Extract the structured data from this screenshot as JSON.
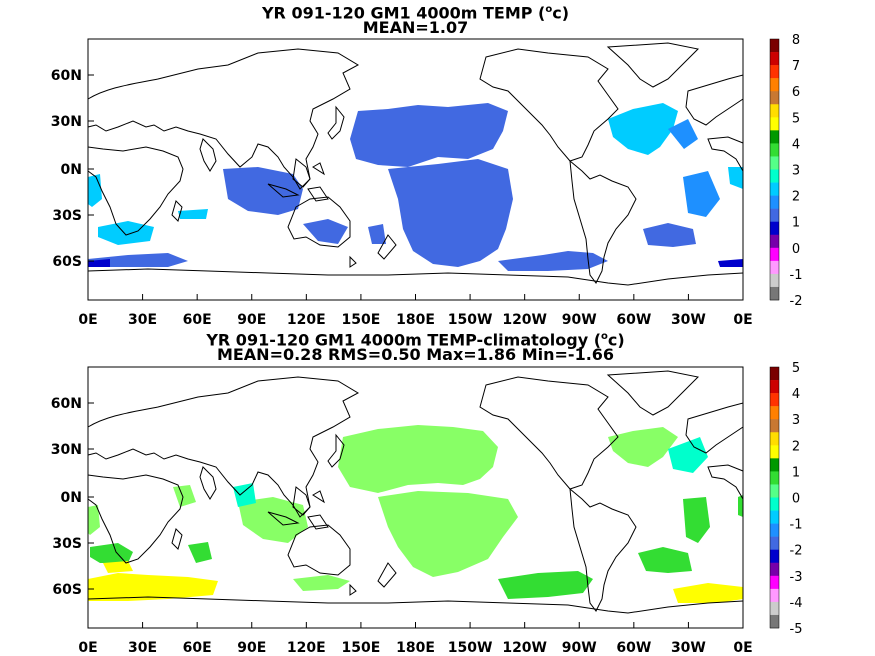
{
  "panels": [
    {
      "title_prefix": "YR 091-120 GM1 4000m TEMP (",
      "title_deg": "o",
      "title_suffix": "c)",
      "subtitle": "MEAN=1.07",
      "colorbar": {
        "labels": [
          "8",
          "7",
          "6",
          "5",
          "4",
          "3",
          "2",
          "1",
          "0",
          "-1",
          "-2"
        ],
        "colors": [
          "#7a0000",
          "#cc0000",
          "#ff3300",
          "#ff8000",
          "#c87832",
          "#ffdd00",
          "#ffff00",
          "#009900",
          "#33dd33",
          "#55ff88",
          "#00ffcc",
          "#00ccff",
          "#1e90ff",
          "#4169e1",
          "#0000cc",
          "#7700aa",
          "#ff00ff",
          "#ff99ff",
          "#cccccc",
          "#777777"
        ]
      }
    },
    {
      "title_prefix": "YR 091-120 GM1 4000m TEMP-climatology (",
      "title_deg": "o",
      "title_suffix": "c)",
      "subtitle": "MEAN=0.28   RMS=0.50   Max=1.86   Min=-1.66",
      "colorbar": {
        "labels": [
          "5",
          "4",
          "3",
          "2",
          "1",
          "0",
          "-1",
          "-2",
          "-3",
          "-4",
          "-5"
        ],
        "colors": [
          "#7a0000",
          "#cc0000",
          "#ff3300",
          "#ff8000",
          "#c87832",
          "#ffdd00",
          "#ffff00",
          "#009900",
          "#33dd33",
          "#55ff88",
          "#00ffcc",
          "#00ccff",
          "#1e90ff",
          "#4169e1",
          "#0000cc",
          "#7700aa",
          "#ff00ff",
          "#ff99ff",
          "#cccccc",
          "#777777"
        ]
      }
    }
  ],
  "lat_labels": [
    "60N",
    "30N",
    "0N",
    "30S",
    "60S"
  ],
  "lon_labels": [
    "0E",
    "30E",
    "60E",
    "90E",
    "120E",
    "150E",
    "180E",
    "150W",
    "120W",
    "90W",
    "60W",
    "30W",
    "0E"
  ],
  "field_colors": {
    "blue": "#4169e1",
    "light_blue": "#00ccff",
    "sky": "#1e90ff",
    "dark_blue": "#0000cc",
    "light_green": "#88ff66",
    "green": "#33dd33",
    "mint": "#00ffcc",
    "yellow": "#ffff00"
  }
}
